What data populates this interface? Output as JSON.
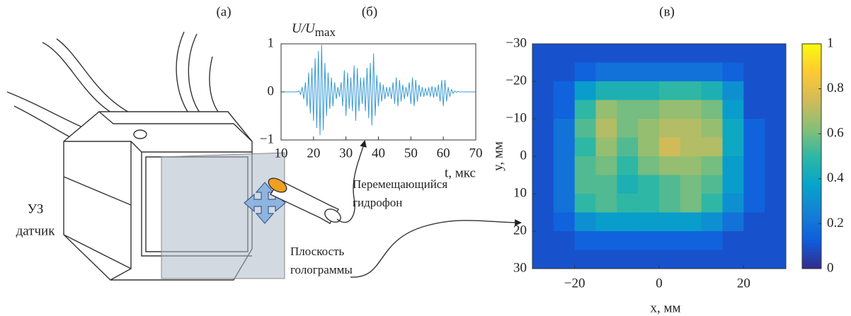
{
  "panels": [
    "(а)",
    "(б)",
    "(в)"
  ],
  "diagram": {
    "sensor": [
      "УЗ",
      "датчик"
    ],
    "hydrophone": [
      "Перемещающийся",
      "гидрофон"
    ],
    "plane": [
      "Плоскость",
      "голограммы"
    ]
  },
  "chart_data": [
    {
      "type": "line",
      "y_label": "U/U",
      "y_label_sub": "max",
      "x_label": "t, мкс",
      "color": "#3a9ad4",
      "xlim": [
        10,
        70
      ],
      "xticks": [
        10,
        20,
        30,
        40,
        50,
        60,
        70
      ],
      "ylim": [
        -1,
        1
      ],
      "yticks": [
        {
          "value": -1,
          "label": "−1"
        },
        0,
        1
      ],
      "x": [
        10,
        15,
        15.5,
        16,
        16.5,
        17,
        17.5,
        18,
        18.5,
        19,
        19.5,
        20,
        20.5,
        21,
        21.5,
        22,
        22.5,
        23,
        23.5,
        24,
        24.5,
        25,
        25.5,
        26,
        26.5,
        27,
        27.5,
        28,
        28.5,
        29,
        29.5,
        30,
        30.5,
        31,
        31.5,
        32,
        32.5,
        33,
        33.5,
        34,
        34.5,
        35,
        35.5,
        36,
        36.5,
        37,
        37.5,
        38,
        38.5,
        39,
        39.5,
        40,
        40.5,
        41,
        41.5,
        42,
        42.5,
        43,
        43.5,
        44,
        44.5,
        45,
        45.5,
        46,
        46.5,
        47,
        47.5,
        48,
        48.5,
        49,
        49.5,
        50,
        50.5,
        51,
        51.5,
        52,
        52.5,
        53,
        53.5,
        54,
        54.5,
        55,
        55.5,
        56,
        56.5,
        57,
        57.5,
        58,
        58.5,
        59,
        59.5,
        60,
        60.5,
        61,
        61.5,
        62,
        62.5,
        63,
        63.5,
        64,
        64.5,
        65,
        70
      ],
      "values": [
        0,
        0,
        0.02,
        -0.05,
        0.1,
        -0.15,
        0.2,
        -0.3,
        0.4,
        -0.45,
        0.5,
        -0.6,
        0.7,
        -0.75,
        0.85,
        -0.9,
        0.98,
        -0.8,
        0.6,
        -0.5,
        0.4,
        -0.35,
        0.3,
        -0.3,
        0.2,
        -0.15,
        0.1,
        -0.1,
        0.2,
        -0.3,
        0.45,
        -0.5,
        0.4,
        -0.35,
        0.3,
        -0.4,
        0.55,
        -0.6,
        0.5,
        -0.4,
        0.3,
        -0.25,
        0.3,
        -0.4,
        0.5,
        -0.55,
        0.6,
        -0.7,
        0.8,
        -0.5,
        0.35,
        -0.3,
        0.2,
        -0.2,
        0.15,
        -0.15,
        0.1,
        -0.1,
        0.1,
        -0.15,
        0.2,
        -0.25,
        0.3,
        -0.3,
        0.25,
        -0.2,
        0.15,
        -0.15,
        0.1,
        -0.1,
        0.2,
        -0.25,
        0.3,
        -0.3,
        0.25,
        -0.2,
        0.15,
        -0.1,
        0.1,
        -0.1,
        0.08,
        -0.08,
        0.1,
        -0.1,
        0.12,
        -0.12,
        0.1,
        -0.1,
        0.15,
        -0.2,
        0.25,
        -0.3,
        0.25,
        -0.2,
        0.1,
        -0.1,
        0.05,
        -0.03,
        0.02,
        -0.01,
        0.01,
        0,
        0
      ]
    },
    {
      "type": "heatmap",
      "x_label": "x, мм",
      "y_label": "y, мм",
      "y_reversed": true,
      "xlim": [
        -30,
        30
      ],
      "xticks": [
        {
          "value": -20,
          "label": "−20"
        },
        0,
        20
      ],
      "ylim": [
        -30,
        30
      ],
      "yticks": [
        {
          "value": -30,
          "label": "−30"
        },
        {
          "value": -20,
          "label": "−20"
        },
        {
          "value": -10,
          "label": "−10"
        },
        0,
        10,
        20,
        30
      ],
      "x": [
        -27.5,
        -22.5,
        -17.5,
        -12.5,
        -7.5,
        -2.5,
        2.5,
        7.5,
        12.5,
        17.5,
        22.5,
        27.5
      ],
      "y": [
        -27.5,
        -22.5,
        -17.5,
        -12.5,
        -7.5,
        -2.5,
        2.5,
        7.5,
        12.5,
        17.5,
        22.5,
        27.5
      ],
      "z": [
        [
          0.1,
          0.1,
          0.1,
          0.1,
          0.1,
          0.1,
          0.1,
          0.1,
          0.1,
          0.1,
          0.1,
          0.1
        ],
        [
          0.1,
          0.1,
          0.15,
          0.2,
          0.2,
          0.2,
          0.2,
          0.2,
          0.2,
          0.15,
          0.1,
          0.1
        ],
        [
          0.1,
          0.15,
          0.35,
          0.45,
          0.45,
          0.45,
          0.5,
          0.5,
          0.45,
          0.3,
          0.1,
          0.1
        ],
        [
          0.1,
          0.15,
          0.5,
          0.65,
          0.6,
          0.6,
          0.65,
          0.65,
          0.6,
          0.35,
          0.1,
          0.1
        ],
        [
          0.1,
          0.2,
          0.55,
          0.7,
          0.6,
          0.65,
          0.7,
          0.7,
          0.65,
          0.4,
          0.15,
          0.1
        ],
        [
          0.1,
          0.2,
          0.5,
          0.65,
          0.55,
          0.65,
          0.75,
          0.7,
          0.7,
          0.4,
          0.15,
          0.1
        ],
        [
          0.1,
          0.2,
          0.55,
          0.6,
          0.5,
          0.6,
          0.65,
          0.65,
          0.6,
          0.35,
          0.15,
          0.1
        ],
        [
          0.1,
          0.2,
          0.55,
          0.55,
          0.45,
          0.5,
          0.55,
          0.6,
          0.55,
          0.35,
          0.15,
          0.1
        ],
        [
          0.1,
          0.2,
          0.5,
          0.55,
          0.5,
          0.5,
          0.55,
          0.6,
          0.5,
          0.3,
          0.15,
          0.1
        ],
        [
          0.1,
          0.15,
          0.3,
          0.35,
          0.35,
          0.35,
          0.35,
          0.35,
          0.3,
          0.2,
          0.1,
          0.1
        ],
        [
          0.1,
          0.1,
          0.15,
          0.15,
          0.15,
          0.15,
          0.15,
          0.15,
          0.15,
          0.1,
          0.1,
          0.1
        ],
        [
          0.1,
          0.1,
          0.1,
          0.1,
          0.1,
          0.1,
          0.1,
          0.1,
          0.1,
          0.1,
          0.1,
          0.1
        ]
      ],
      "clim": [
        0,
        1
      ],
      "cticks": [
        0,
        0.2,
        0.4,
        0.6,
        0.8,
        1
      ],
      "colormap": [
        "#352a87",
        "#0f5cdd",
        "#1481d6",
        "#06a4ca",
        "#2eb7a4",
        "#87bf77",
        "#d1bb59",
        "#fec832",
        "#f9fb0e"
      ]
    }
  ]
}
